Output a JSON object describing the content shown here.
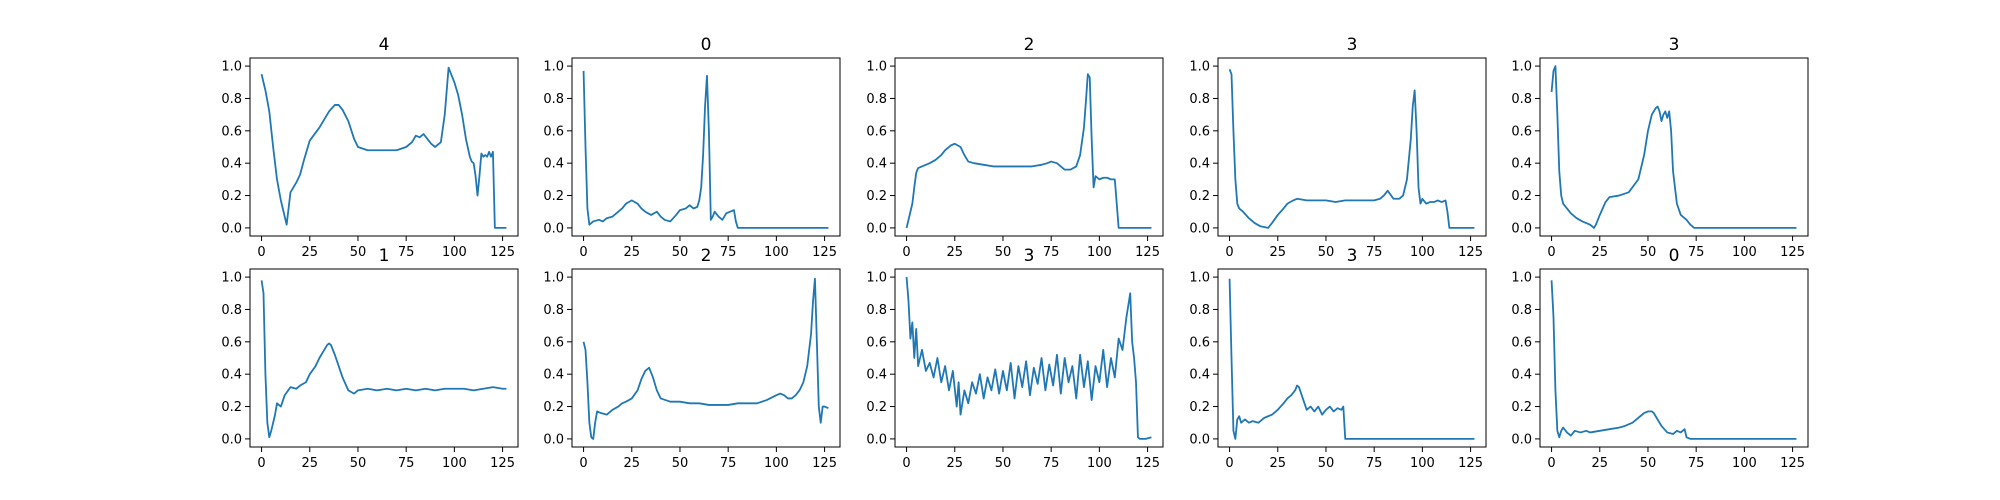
{
  "figure": {
    "background": "#ffffff",
    "line_color": "#1f77b4"
  },
  "chart_data": [
    {
      "type": "line",
      "title": "4",
      "xlim": [
        -6,
        133
      ],
      "ylim": [
        -0.05,
        1.05
      ],
      "xticks": [
        0,
        25,
        50,
        75,
        100,
        125
      ],
      "yticks": [
        0.0,
        0.2,
        0.4,
        0.6,
        0.8,
        1.0
      ],
      "x": [
        0,
        2,
        4,
        6,
        8,
        10,
        12,
        13,
        15,
        18,
        20,
        22,
        25,
        30,
        35,
        38,
        40,
        42,
        45,
        48,
        50,
        55,
        60,
        65,
        70,
        75,
        78,
        80,
        82,
        84,
        86,
        88,
        90,
        93,
        95,
        97,
        98,
        100,
        102,
        104,
        106,
        108,
        109,
        110,
        111,
        112,
        113,
        114,
        115,
        116,
        117,
        118,
        119,
        120,
        121,
        122,
        123,
        127
      ],
      "values": [
        0.95,
        0.85,
        0.72,
        0.5,
        0.3,
        0.17,
        0.07,
        0.02,
        0.22,
        0.28,
        0.33,
        0.42,
        0.54,
        0.62,
        0.72,
        0.76,
        0.76,
        0.73,
        0.66,
        0.55,
        0.5,
        0.48,
        0.48,
        0.48,
        0.48,
        0.5,
        0.53,
        0.57,
        0.56,
        0.58,
        0.55,
        0.52,
        0.5,
        0.53,
        0.7,
        0.99,
        0.96,
        0.9,
        0.82,
        0.7,
        0.55,
        0.44,
        0.41,
        0.4,
        0.32,
        0.2,
        0.32,
        0.46,
        0.44,
        0.45,
        0.44,
        0.47,
        0.44,
        0.47,
        0.0,
        0.0,
        0.0,
        0.0
      ]
    },
    {
      "type": "line",
      "title": "0",
      "xlim": [
        -6,
        133
      ],
      "ylim": [
        -0.05,
        1.05
      ],
      "xticks": [
        0,
        25,
        50,
        75,
        100,
        125
      ],
      "yticks": [
        0.0,
        0.2,
        0.4,
        0.6,
        0.8,
        1.0
      ],
      "x": [
        0,
        1,
        2,
        3,
        5,
        8,
        10,
        12,
        15,
        18,
        20,
        22,
        25,
        28,
        30,
        32,
        35,
        38,
        40,
        42,
        45,
        48,
        50,
        53,
        55,
        57,
        59,
        60,
        61,
        62,
        63,
        64,
        65,
        66,
        67,
        68,
        70,
        72,
        74,
        76,
        78,
        79,
        80,
        100,
        127
      ],
      "values": [
        0.97,
        0.5,
        0.12,
        0.02,
        0.04,
        0.05,
        0.04,
        0.06,
        0.07,
        0.1,
        0.12,
        0.15,
        0.17,
        0.15,
        0.12,
        0.1,
        0.08,
        0.1,
        0.07,
        0.05,
        0.04,
        0.08,
        0.11,
        0.12,
        0.14,
        0.12,
        0.13,
        0.17,
        0.25,
        0.45,
        0.75,
        0.94,
        0.6,
        0.05,
        0.07,
        0.1,
        0.07,
        0.05,
        0.09,
        0.1,
        0.11,
        0.04,
        0.0,
        0.0,
        0.0
      ]
    },
    {
      "type": "line",
      "title": "2",
      "xlim": [
        -6,
        133
      ],
      "ylim": [
        -0.05,
        1.05
      ],
      "xticks": [
        0,
        25,
        50,
        75,
        100,
        125
      ],
      "yticks": [
        0.0,
        0.2,
        0.4,
        0.6,
        0.8,
        1.0
      ],
      "x": [
        0,
        1,
        2,
        3,
        4,
        5,
        6,
        8,
        10,
        12,
        15,
        18,
        20,
        23,
        25,
        28,
        30,
        32,
        35,
        40,
        45,
        50,
        55,
        60,
        65,
        70,
        73,
        75,
        78,
        80,
        82,
        85,
        88,
        90,
        92,
        93,
        94,
        95,
        96,
        97,
        98,
        100,
        102,
        104,
        106,
        108,
        109,
        110,
        127
      ],
      "values": [
        0.0,
        0.05,
        0.1,
        0.15,
        0.25,
        0.34,
        0.37,
        0.38,
        0.39,
        0.4,
        0.42,
        0.45,
        0.48,
        0.51,
        0.52,
        0.5,
        0.45,
        0.41,
        0.4,
        0.39,
        0.38,
        0.38,
        0.38,
        0.38,
        0.38,
        0.39,
        0.4,
        0.41,
        0.4,
        0.38,
        0.36,
        0.36,
        0.38,
        0.45,
        0.62,
        0.78,
        0.95,
        0.93,
        0.55,
        0.25,
        0.32,
        0.3,
        0.31,
        0.31,
        0.3,
        0.3,
        0.15,
        0.0,
        0.0
      ]
    },
    {
      "type": "line",
      "title": "3",
      "xlim": [
        -6,
        133
      ],
      "ylim": [
        -0.05,
        1.05
      ],
      "xticks": [
        0,
        25,
        50,
        75,
        100,
        125
      ],
      "yticks": [
        0.0,
        0.2,
        0.4,
        0.6,
        0.8,
        1.0
      ],
      "x": [
        0,
        1,
        2,
        3,
        4,
        5,
        7,
        10,
        13,
        16,
        20,
        22,
        25,
        28,
        30,
        33,
        35,
        40,
        45,
        50,
        55,
        60,
        65,
        70,
        75,
        78,
        80,
        82,
        85,
        88,
        90,
        92,
        94,
        95,
        96,
        97,
        98,
        99,
        100,
        102,
        104,
        106,
        108,
        110,
        112,
        113,
        114,
        127
      ],
      "values": [
        0.98,
        0.95,
        0.6,
        0.3,
        0.15,
        0.12,
        0.1,
        0.06,
        0.03,
        0.01,
        0.0,
        0.03,
        0.08,
        0.12,
        0.15,
        0.17,
        0.18,
        0.17,
        0.17,
        0.17,
        0.16,
        0.17,
        0.17,
        0.17,
        0.17,
        0.18,
        0.2,
        0.23,
        0.18,
        0.18,
        0.2,
        0.3,
        0.55,
        0.75,
        0.85,
        0.6,
        0.25,
        0.15,
        0.18,
        0.15,
        0.16,
        0.16,
        0.17,
        0.16,
        0.17,
        0.1,
        0.0,
        0.0
      ]
    },
    {
      "type": "line",
      "title": "3",
      "xlim": [
        -6,
        133
      ],
      "ylim": [
        -0.05,
        1.05
      ],
      "xticks": [
        0,
        25,
        50,
        75,
        100,
        125
      ],
      "yticks": [
        0.0,
        0.2,
        0.4,
        0.6,
        0.8,
        1.0
      ],
      "x": [
        0,
        1,
        2,
        3,
        4,
        5,
        6,
        8,
        10,
        13,
        16,
        20,
        22,
        23,
        25,
        28,
        30,
        35,
        40,
        45,
        48,
        50,
        52,
        54,
        55,
        56,
        57,
        58,
        59,
        60,
        61,
        62,
        63,
        65,
        67,
        70,
        72,
        74,
        100,
        127
      ],
      "values": [
        0.84,
        0.97,
        1.0,
        0.7,
        0.35,
        0.2,
        0.15,
        0.12,
        0.09,
        0.06,
        0.04,
        0.02,
        0.0,
        0.02,
        0.08,
        0.16,
        0.19,
        0.2,
        0.22,
        0.3,
        0.45,
        0.6,
        0.7,
        0.74,
        0.75,
        0.72,
        0.66,
        0.7,
        0.72,
        0.68,
        0.72,
        0.6,
        0.35,
        0.15,
        0.08,
        0.05,
        0.02,
        0.0,
        0.0,
        0.0
      ]
    },
    {
      "type": "line",
      "title": "1",
      "xlim": [
        -6,
        133
      ],
      "ylim": [
        -0.05,
        1.05
      ],
      "xticks": [
        0,
        25,
        50,
        75,
        100,
        125
      ],
      "yticks": [
        0.0,
        0.2,
        0.4,
        0.6,
        0.8,
        1.0
      ],
      "x": [
        0,
        1,
        2,
        3,
        4,
        5,
        6,
        7,
        8,
        10,
        12,
        15,
        18,
        20,
        23,
        25,
        28,
        30,
        32,
        34,
        35,
        36,
        38,
        40,
        42,
        45,
        48,
        50,
        55,
        60,
        65,
        70,
        75,
        80,
        85,
        90,
        95,
        100,
        105,
        110,
        115,
        120,
        125,
        127
      ],
      "values": [
        0.98,
        0.9,
        0.4,
        0.1,
        0.01,
        0.05,
        0.1,
        0.15,
        0.22,
        0.2,
        0.27,
        0.32,
        0.31,
        0.33,
        0.35,
        0.4,
        0.45,
        0.5,
        0.54,
        0.58,
        0.59,
        0.58,
        0.52,
        0.45,
        0.38,
        0.3,
        0.28,
        0.3,
        0.31,
        0.3,
        0.31,
        0.3,
        0.31,
        0.3,
        0.31,
        0.3,
        0.31,
        0.31,
        0.31,
        0.3,
        0.31,
        0.32,
        0.31,
        0.31
      ]
    },
    {
      "type": "line",
      "title": "2",
      "xlim": [
        -6,
        133
      ],
      "ylim": [
        -0.05,
        1.05
      ],
      "xticks": [
        0,
        25,
        50,
        75,
        100,
        125
      ],
      "yticks": [
        0.0,
        0.2,
        0.4,
        0.6,
        0.8,
        1.0
      ],
      "x": [
        0,
        1,
        2,
        3,
        4,
        5,
        6,
        7,
        9,
        12,
        15,
        18,
        20,
        22,
        25,
        28,
        30,
        32,
        34,
        36,
        38,
        40,
        45,
        50,
        55,
        60,
        65,
        70,
        75,
        80,
        85,
        90,
        95,
        100,
        102,
        104,
        106,
        108,
        110,
        112,
        114,
        116,
        118,
        119,
        120,
        121,
        122,
        123,
        124,
        125,
        127
      ],
      "values": [
        0.6,
        0.55,
        0.35,
        0.1,
        0.01,
        0.0,
        0.1,
        0.17,
        0.16,
        0.15,
        0.18,
        0.2,
        0.22,
        0.23,
        0.25,
        0.3,
        0.37,
        0.42,
        0.44,
        0.38,
        0.3,
        0.25,
        0.23,
        0.23,
        0.22,
        0.22,
        0.21,
        0.21,
        0.21,
        0.22,
        0.22,
        0.22,
        0.24,
        0.27,
        0.28,
        0.27,
        0.25,
        0.25,
        0.27,
        0.3,
        0.35,
        0.45,
        0.65,
        0.85,
        0.99,
        0.6,
        0.2,
        0.1,
        0.2,
        0.2,
        0.19
      ]
    },
    {
      "type": "line",
      "title": "3",
      "xlim": [
        -6,
        133
      ],
      "ylim": [
        -0.05,
        1.05
      ],
      "xticks": [
        0,
        25,
        50,
        75,
        100,
        125
      ],
      "yticks": [
        0.0,
        0.2,
        0.4,
        0.6,
        0.8,
        1.0
      ],
      "x": [
        0,
        1,
        2,
        3,
        4,
        5,
        6,
        8,
        10,
        12,
        14,
        16,
        18,
        20,
        22,
        24,
        26,
        27,
        28,
        30,
        32,
        34,
        36,
        38,
        40,
        42,
        44,
        46,
        48,
        50,
        52,
        54,
        56,
        58,
        60,
        62,
        64,
        66,
        68,
        70,
        72,
        74,
        76,
        78,
        80,
        82,
        84,
        86,
        88,
        90,
        92,
        94,
        96,
        98,
        100,
        102,
        104,
        106,
        108,
        110,
        112,
        114,
        116,
        117,
        118,
        119,
        120,
        121,
        122,
        124,
        127
      ],
      "values": [
        1.0,
        0.85,
        0.62,
        0.72,
        0.5,
        0.68,
        0.45,
        0.55,
        0.42,
        0.47,
        0.38,
        0.5,
        0.35,
        0.45,
        0.3,
        0.42,
        0.2,
        0.35,
        0.15,
        0.3,
        0.22,
        0.35,
        0.28,
        0.4,
        0.25,
        0.38,
        0.3,
        0.43,
        0.28,
        0.42,
        0.3,
        0.47,
        0.25,
        0.45,
        0.32,
        0.48,
        0.27,
        0.44,
        0.34,
        0.5,
        0.3,
        0.46,
        0.33,
        0.52,
        0.28,
        0.5,
        0.35,
        0.45,
        0.25,
        0.52,
        0.32,
        0.48,
        0.24,
        0.45,
        0.35,
        0.55,
        0.32,
        0.5,
        0.38,
        0.62,
        0.55,
        0.75,
        0.9,
        0.6,
        0.5,
        0.35,
        0.01,
        0.0,
        0.0,
        0.0,
        0.01
      ]
    },
    {
      "type": "line",
      "title": "3",
      "xlim": [
        -6,
        133
      ],
      "ylim": [
        -0.05,
        1.05
      ],
      "xticks": [
        0,
        25,
        50,
        75,
        100,
        125
      ],
      "yticks": [
        0.0,
        0.2,
        0.4,
        0.6,
        0.8,
        1.0
      ],
      "x": [
        0,
        1,
        2,
        3,
        4,
        5,
        6,
        8,
        10,
        12,
        15,
        18,
        20,
        22,
        25,
        28,
        30,
        32,
        34,
        35,
        36,
        38,
        40,
        42,
        44,
        46,
        48,
        50,
        52,
        54,
        56,
        58,
        59,
        60,
        75,
        100,
        127
      ],
      "values": [
        0.99,
        0.5,
        0.05,
        0.0,
        0.12,
        0.14,
        0.1,
        0.12,
        0.1,
        0.11,
        0.1,
        0.13,
        0.14,
        0.15,
        0.18,
        0.22,
        0.25,
        0.27,
        0.3,
        0.33,
        0.32,
        0.25,
        0.18,
        0.2,
        0.17,
        0.2,
        0.15,
        0.18,
        0.2,
        0.17,
        0.19,
        0.18,
        0.2,
        0.0,
        0.0,
        0.0,
        0.0
      ]
    },
    {
      "type": "line",
      "title": "0",
      "xlim": [
        -6,
        133
      ],
      "ylim": [
        -0.05,
        1.05
      ],
      "xticks": [
        0,
        25,
        50,
        75,
        100,
        125
      ],
      "yticks": [
        0.0,
        0.2,
        0.4,
        0.6,
        0.8,
        1.0
      ],
      "x": [
        0,
        1,
        2,
        3,
        4,
        5,
        6,
        8,
        10,
        12,
        15,
        18,
        20,
        25,
        30,
        35,
        38,
        40,
        42,
        44,
        46,
        48,
        50,
        52,
        53,
        55,
        57,
        60,
        63,
        65,
        67,
        69,
        70,
        72,
        100,
        127
      ],
      "values": [
        0.98,
        0.75,
        0.3,
        0.05,
        0.01,
        0.05,
        0.07,
        0.04,
        0.02,
        0.05,
        0.04,
        0.05,
        0.04,
        0.05,
        0.06,
        0.07,
        0.08,
        0.09,
        0.1,
        0.12,
        0.14,
        0.16,
        0.17,
        0.17,
        0.16,
        0.12,
        0.08,
        0.04,
        0.03,
        0.05,
        0.04,
        0.06,
        0.01,
        0.0,
        0.0,
        0.0
      ]
    }
  ]
}
